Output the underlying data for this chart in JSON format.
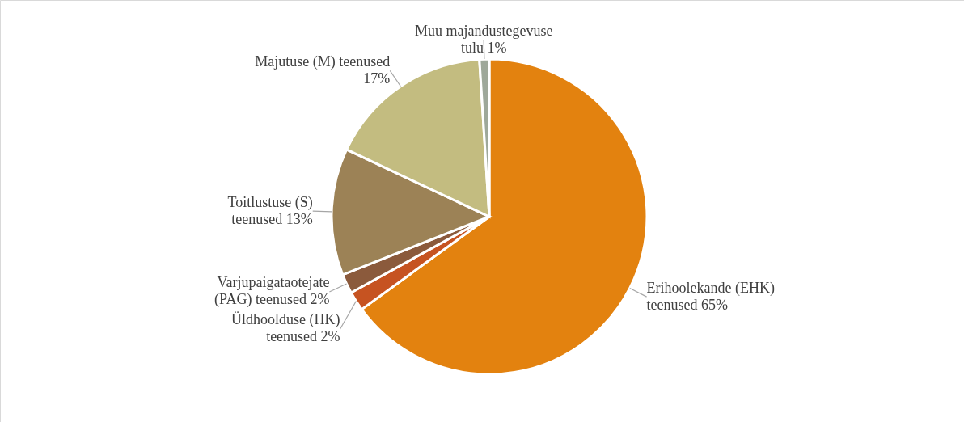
{
  "chart_data": {
    "type": "pie",
    "categories": [
      "Erihoolekande (EHK) teenused",
      "Üldhoolduse (HK) teenused",
      "Varjupaigataotejate (PAG) teenused",
      "Toitlustuse (S) teenused",
      "Majutuse (M) teenused",
      "Muu majandustegevuse tulu"
    ],
    "values": [
      65,
      2,
      2,
      13,
      17,
      1
    ],
    "colors": [
      "#e3820f",
      "#c65321",
      "#8b5a3c",
      "#9c8256",
      "#c3bc80",
      "#9ea89a"
    ],
    "value_labels": [
      "65%",
      "2%",
      "2%",
      "13%",
      "17%",
      "1%"
    ]
  }
}
